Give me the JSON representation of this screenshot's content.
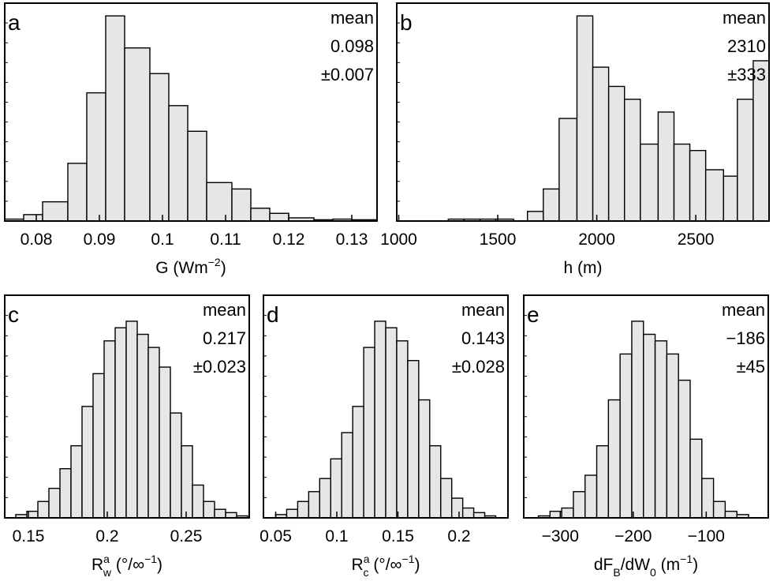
{
  "chart_data": [
    {
      "panel": "a",
      "type": "bar",
      "xlabel_main": "G (Wm",
      "xlabel_sup": "−2",
      "xlabel_tail": ")",
      "xlim": [
        0.075,
        0.134
      ],
      "ylim": [
        0,
        33
      ],
      "xticks": [
        0.08,
        0.09,
        0.1,
        0.11,
        0.12,
        0.13
      ],
      "xtick_labels": [
        "0.08",
        "0.09",
        "0.1",
        "0.11",
        "0.12",
        "0.13"
      ],
      "bin_edges": [
        0.075,
        0.078,
        0.081,
        0.085,
        0.088,
        0.091,
        0.094,
        0.098,
        0.101,
        0.104,
        0.107,
        0.111,
        0.114,
        0.117,
        0.12,
        0.124,
        0.127,
        0.13,
        0.134
      ],
      "values": [
        0.3,
        1,
        3,
        9,
        20,
        32,
        27,
        23,
        18,
        14,
        6,
        5,
        2,
        1.2,
        0.5,
        0.2,
        0.3,
        0.2
      ],
      "stats": [
        "mean",
        "0.098",
        "±0.007"
      ]
    },
    {
      "panel": "b",
      "type": "bar",
      "xlabel_main": "h (m)",
      "xlim": [
        990,
        2870
      ],
      "ylim": [
        0,
        33
      ],
      "xticks": [
        1000,
        1500,
        2000,
        2500
      ],
      "xtick_labels": [
        "1000",
        "1500",
        "2000",
        "2500"
      ],
      "bin_edges": [
        1010,
        1100,
        1180,
        1250,
        1330,
        1410,
        1490,
        1580,
        1650,
        1730,
        1810,
        1900,
        1980,
        2060,
        2140,
        2220,
        2310,
        2390,
        2470,
        2550,
        2640,
        2710,
        2790,
        2870
      ],
      "values": [
        0,
        0,
        0,
        0.3,
        0.3,
        0.3,
        0.3,
        0,
        1.5,
        5,
        16,
        32,
        24,
        21,
        19,
        12,
        17,
        12,
        11,
        8,
        7,
        19,
        25
      ],
      "stats": [
        "mean",
        "2310",
        "±333"
      ]
    },
    {
      "panel": "c",
      "type": "bar",
      "xlabel_main": "R",
      "xlabel_sup": "a",
      "xlabel_sub": "w",
      "xlabel_tail": " (°/∞",
      "xlabel_tail_sup": "−1",
      "xlabel_close": ")",
      "xlim": [
        0.135,
        0.29
      ],
      "ylim": [
        0,
        33
      ],
      "xticks": [
        0.15,
        0.2,
        0.25
      ],
      "xtick_labels": [
        "0.15",
        "0.2",
        "0.25"
      ],
      "bin_edges": [
        0.135,
        0.142,
        0.149,
        0.156,
        0.163,
        0.17,
        0.177,
        0.184,
        0.191,
        0.198,
        0.205,
        0.212,
        0.219,
        0.226,
        0.233,
        0.24,
        0.247,
        0.254,
        0.261,
        0.268,
        0.275,
        0.282,
        0.289
      ],
      "values": [
        0,
        0.5,
        1,
        2.5,
        4.5,
        7.5,
        11,
        17,
        22,
        27,
        29,
        30,
        28,
        26,
        23,
        16,
        11,
        5,
        2.5,
        1.3,
        0.8,
        0.3
      ],
      "stats": [
        "mean",
        "0.217",
        "±0.023"
      ]
    },
    {
      "panel": "d",
      "type": "bar",
      "xlabel_main": "R",
      "xlabel_sup": "a",
      "xlabel_sub": "c",
      "xlabel_tail": " (°/∞",
      "xlabel_tail_sup": "−1",
      "xlabel_close": ")",
      "xlim": [
        0.04,
        0.24
      ],
      "ylim": [
        0,
        33
      ],
      "xticks": [
        0.05,
        0.1,
        0.15,
        0.2
      ],
      "xtick_labels": [
        "0.05",
        "0.1",
        "0.15",
        "0.2"
      ],
      "bin_edges": [
        0.05,
        0.059,
        0.068,
        0.077,
        0.086,
        0.095,
        0.104,
        0.113,
        0.122,
        0.131,
        0.14,
        0.149,
        0.158,
        0.167,
        0.176,
        0.185,
        0.194,
        0.203,
        0.212,
        0.221,
        0.23
      ],
      "values": [
        0.5,
        1.3,
        2.5,
        4,
        6,
        9,
        13,
        17,
        26,
        30,
        29,
        27,
        24,
        18,
        11,
        6,
        3,
        1.5,
        0.8,
        0.3
      ],
      "stats": [
        "mean",
        "0.143",
        "±0.028"
      ]
    },
    {
      "panel": "e",
      "type": "bar",
      "xlabel_main": "dF",
      "xlabel_sub": "B",
      "xlabel_tail": "/dW",
      "xlabel_sub2": "0",
      "xlabel_tail2": " (m",
      "xlabel_tail_sup": "−1",
      "xlabel_close": ")",
      "xlim": [
        -350,
        -15
      ],
      "ylim": [
        0,
        33
      ],
      "xticks": [
        -300,
        -200,
        -100
      ],
      "xtick_labels": [
        "−300",
        "−200",
        "−100"
      ],
      "bin_edges": [
        -330,
        -314,
        -298,
        -282,
        -266,
        -250,
        -234,
        -218,
        -202,
        -186,
        -170,
        -154,
        -138,
        -122,
        -106,
        -90,
        -74,
        -58,
        -42
      ],
      "values": [
        0.3,
        1,
        1.5,
        4,
        6.5,
        11,
        18,
        25,
        30,
        28,
        27,
        25,
        21,
        12,
        6,
        2.5,
        1,
        0.5
      ],
      "stats": [
        "mean",
        "−186",
        "±45"
      ]
    }
  ]
}
